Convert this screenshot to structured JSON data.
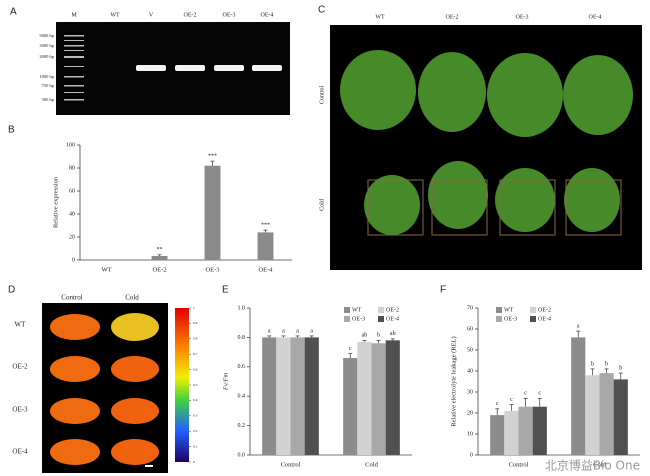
{
  "panels": {
    "A": {
      "label": "A",
      "lanes": [
        "M",
        "WT",
        "V",
        "OE-2",
        "OE-3",
        "OE-4"
      ],
      "markers": [
        "5000 bp",
        "3000 bp",
        "2000 bp",
        "1000 bp",
        "750 bp",
        "500 bp"
      ]
    },
    "C": {
      "label": "C",
      "columns": [
        "WT",
        "OE-2",
        "OE-3",
        "OE-4"
      ],
      "rows": [
        "Control",
        "Cold"
      ]
    },
    "D": {
      "label": "D",
      "columns": [
        "Control",
        "Cold"
      ],
      "rows": [
        "WT",
        "OE-2",
        "OE-3",
        "OE-4"
      ],
      "colorbar_ticks": [
        1,
        0.9,
        0.8,
        0.7,
        0.6,
        0.5,
        0.4,
        0.3,
        0.2,
        0.1,
        0
      ]
    }
  },
  "watermark": "北京博益Bio One",
  "chart_data": [
    {
      "type": "bar",
      "panel": "B",
      "ylabel": "Relative expression",
      "categories": [
        "WT",
        "OE-2",
        "OE-3",
        "OE-4"
      ],
      "values": [
        0,
        3.5,
        82,
        24
      ],
      "errors": [
        0,
        1,
        4,
        2
      ],
      "significance": [
        null,
        "**",
        "***",
        "***"
      ],
      "color": "#8a8a8a",
      "ylim": [
        0,
        100
      ],
      "yticks": [
        0,
        20,
        40,
        60,
        80,
        100
      ]
    },
    {
      "type": "bar",
      "panel": "E",
      "ylabel": "Fv/Fm",
      "categories": [
        "Control",
        "Cold"
      ],
      "legend": "upper right",
      "series": [
        {
          "name": "WT",
          "color": "#8c8c8c",
          "values": [
            0.8,
            0.66
          ],
          "errors": [
            0.01,
            0.03
          ],
          "letters": [
            "a",
            "c"
          ]
        },
        {
          "name": "OE-2",
          "color": "#d2d2d2",
          "values": [
            0.8,
            0.77
          ],
          "errors": [
            0.01,
            0.01
          ],
          "letters": [
            "a",
            "ab"
          ]
        },
        {
          "name": "OE-3",
          "color": "#a8a8a8",
          "values": [
            0.8,
            0.76
          ],
          "errors": [
            0.01,
            0.02
          ],
          "letters": [
            "a",
            "b"
          ]
        },
        {
          "name": "OE-4",
          "color": "#505050",
          "values": [
            0.8,
            0.78
          ],
          "errors": [
            0.01,
            0.01
          ],
          "letters": [
            "a",
            "ab"
          ]
        }
      ],
      "ylim": [
        0,
        1
      ],
      "yticks": [
        {
          "value": 0,
          "label": "0.0"
        },
        0.2,
        0.4,
        0.6,
        0.8,
        {
          "value": 1,
          "label": "1.0"
        }
      ]
    },
    {
      "type": "bar",
      "panel": "F",
      "ylabel": "Relative electrolyte leakage (REL)",
      "categories": [
        "Control",
        "Cold"
      ],
      "legend": "upper left",
      "series": [
        {
          "name": "WT",
          "color": "#8c8c8c",
          "values": [
            19,
            56
          ],
          "errors": [
            3,
            3
          ],
          "letters": [
            "c",
            "a"
          ]
        },
        {
          "name": "OE-2",
          "color": "#d2d2d2",
          "values": [
            21,
            38
          ],
          "errors": [
            3,
            3
          ],
          "letters": [
            "c",
            "b"
          ]
        },
        {
          "name": "OE-3",
          "color": "#a8a8a8",
          "values": [
            23,
            39
          ],
          "errors": [
            4,
            2
          ],
          "letters": [
            "c",
            "b"
          ]
        },
        {
          "name": "OE-4",
          "color": "#505050",
          "values": [
            23,
            36
          ],
          "errors": [
            4,
            3
          ],
          "letters": [
            "c",
            "b"
          ]
        }
      ],
      "ylim": [
        0,
        70
      ],
      "yticks": [
        0,
        10,
        20,
        30,
        40,
        50,
        60,
        70
      ]
    }
  ]
}
